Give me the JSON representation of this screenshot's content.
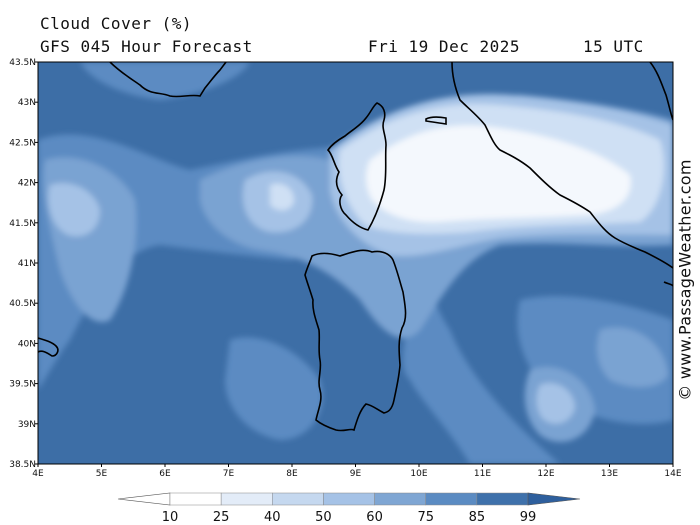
{
  "header": {
    "title": "Cloud Cover (%)",
    "subtitle": "GFS 045 Hour Forecast",
    "date": "Fri 19 Dec 2025",
    "time": "15 UTC"
  },
  "credit": "© www.PassageWeather.com",
  "map": {
    "lat_ticks": [
      "43.5N",
      "43N",
      "42.5N",
      "42N",
      "41.5N",
      "41N",
      "40.5N",
      "40N",
      "39.5N",
      "39N",
      "38.5N"
    ],
    "lon_ticks": [
      "4E",
      "5E",
      "6E",
      "7E",
      "8E",
      "9E",
      "10E",
      "11E",
      "12E",
      "13E",
      "14E"
    ],
    "colors": {
      "background": "#3d6ea6",
      "band_70": "#5b8bc2",
      "band_60": "#7aa3d2",
      "band_45": "#a5c2e6",
      "band_30": "#cfe0f4",
      "band_15": "#f4f8fd",
      "coast": "#000000"
    }
  },
  "legend": {
    "values": [
      "10",
      "25",
      "40",
      "50",
      "60",
      "75",
      "85",
      "99"
    ],
    "colors": [
      "#ffffff",
      "#ffffff",
      "#e3ecf8",
      "#c5d8ef",
      "#a5c2e6",
      "#7fa6d3",
      "#5b8bc2",
      "#3f71ab",
      "#2e5f9d"
    ]
  }
}
